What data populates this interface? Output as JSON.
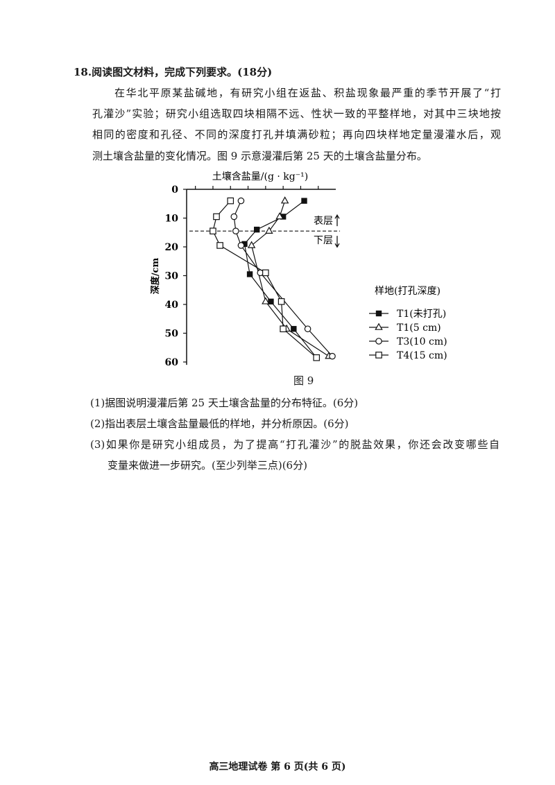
{
  "question": {
    "title": "18.阅读图文材料，完成下列要求。(18分)",
    "paragraph_lines": [
      "在华北平原某盐碱地，有研究小组在返盐、积盐现象最严重的季节开展了“打",
      "孔灌沙”实验；研究小组选取四块相隔不远、性状一致的平整样地，对其中三块地按",
      "相同的密度和孔径、不同的深度打孔并填满砂粒；再向四块样地定量漫灌水后，观",
      "测土壤含盐量的变化情况。图 9 示意漫灌后第 25 天的土壤含盐量分布。"
    ],
    "sub_questions": [
      "(1)据图说明漫灌后第 25 天土壤含盐量的分布特征。(6分)",
      "(2)指出表层土壤含盐量最低的样地，并分析原因。(6分)",
      "(3)如果你是研究小组成员，为了提高“打孔灌沙”的脱盐效果，你还会改变哪些自",
      "变量来做进一步研究。(至少列举三点)(6分)"
    ]
  },
  "figure_caption": "图 9",
  "footer": "高三地理试卷 第 6 页(共 6 页)",
  "chart_data": {
    "type": "line",
    "xlabel": "土壤含盐量/(g · kg⁻¹)",
    "ylabel": "深度/cm",
    "x_position": "top",
    "y_inverted": true,
    "ylim": [
      0,
      60
    ],
    "yticks": [
      0,
      10,
      20,
      30,
      40,
      50,
      60
    ],
    "xlim_tick_units": [
      0,
      8.5
    ],
    "xticks_unlabeled": [
      0.5,
      1.5,
      2.5,
      3.5,
      4.5,
      5.5,
      6.5,
      7.5
    ],
    "grid": false,
    "legend_title": "样地(打孔深度)",
    "legend_position": "right",
    "boundary": {
      "depth": 14.5,
      "upper_label": "表层",
      "lower_label": "下层"
    },
    "series": [
      {
        "name": "T1(未打孔)",
        "marker": "filled-square",
        "x": [
          6.7,
          5.5,
          4.0,
          3.3,
          3.6,
          4.8,
          6.1,
          7.4
        ],
        "depth": [
          4,
          9.5,
          14,
          19,
          29.5,
          39,
          48.5,
          58.5
        ]
      },
      {
        "name": "T1(5 cm)",
        "marker": "open-triangle",
        "x": [
          5.6,
          5.3,
          4.7,
          3.7,
          4.5,
          5.7,
          8.1
        ],
        "depth": [
          4,
          9.5,
          14.5,
          19.5,
          39,
          48.5,
          58
        ]
      },
      {
        "name": "T3(10 cm)",
        "marker": "open-circle",
        "x": [
          3.1,
          2.7,
          2.8,
          3.1,
          4.2,
          6.9,
          8.3
        ],
        "depth": [
          4,
          9.5,
          14.5,
          19.5,
          29,
          48.5,
          58
        ]
      },
      {
        "name": "T4(15 cm)",
        "marker": "open-square",
        "x": [
          2.5,
          1.7,
          1.5,
          1.9,
          4.5,
          5.4,
          5.5,
          7.4
        ],
        "depth": [
          4,
          9.5,
          14.5,
          19.5,
          29,
          39,
          48.5,
          58.5
        ]
      }
    ]
  }
}
